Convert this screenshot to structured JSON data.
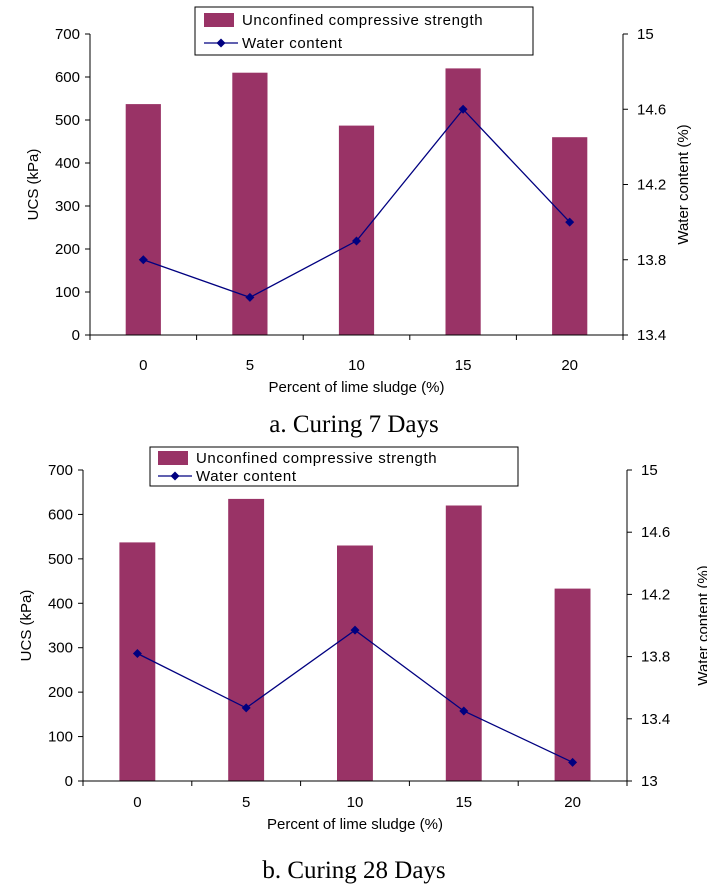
{
  "chart_data": [
    {
      "type": "bar",
      "caption": "a. Curing 7 Days",
      "categories": [
        "0",
        "5",
        "10",
        "15",
        "20"
      ],
      "xlabel": "Percent of lime sludge (%)",
      "ylabel": "UCS (kPa)",
      "y2label": "Water content (%)",
      "ylim": [
        0,
        700
      ],
      "yticks": [
        "0",
        "100",
        "200",
        "300",
        "400",
        "500",
        "600",
        "700"
      ],
      "y2lim": [
        13.4,
        15
      ],
      "y2ticks": [
        "13.4",
        "13.8",
        "14.2",
        "14.6",
        "15"
      ],
      "legend": "top-center",
      "grid": false,
      "series": [
        {
          "name": "Unconfined compressive strength",
          "type": "bar",
          "axis": "left",
          "color": "#993366",
          "values": [
            537,
            610,
            487,
            620,
            460
          ]
        },
        {
          "name": "Water content",
          "type": "line",
          "axis": "right",
          "color": "#000080",
          "values": [
            13.8,
            13.6,
            13.9,
            14.6,
            14.0
          ]
        }
      ]
    },
    {
      "type": "bar",
      "caption": "b. Curing 28 Days",
      "categories": [
        "0",
        "5",
        "10",
        "15",
        "20"
      ],
      "xlabel": "Percent of lime sludge (%)",
      "ylabel": "UCS (kPa)",
      "y2label": "Water content (%)",
      "ylim": [
        0,
        700
      ],
      "yticks": [
        "0",
        "100",
        "200",
        "300",
        "400",
        "500",
        "600",
        "700"
      ],
      "y2lim": [
        13,
        15
      ],
      "y2ticks": [
        "13",
        "13.4",
        "13.8",
        "14.2",
        "14.6",
        "15"
      ],
      "legend": "top-center",
      "grid": false,
      "series": [
        {
          "name": "Unconfined compressive strength",
          "type": "bar",
          "axis": "left",
          "color": "#993366",
          "values": [
            537,
            635,
            530,
            620,
            433
          ]
        },
        {
          "name": "Water content",
          "type": "line",
          "axis": "right",
          "color": "#000080",
          "values": [
            13.82,
            13.47,
            13.97,
            13.45,
            13.12
          ]
        }
      ]
    }
  ]
}
